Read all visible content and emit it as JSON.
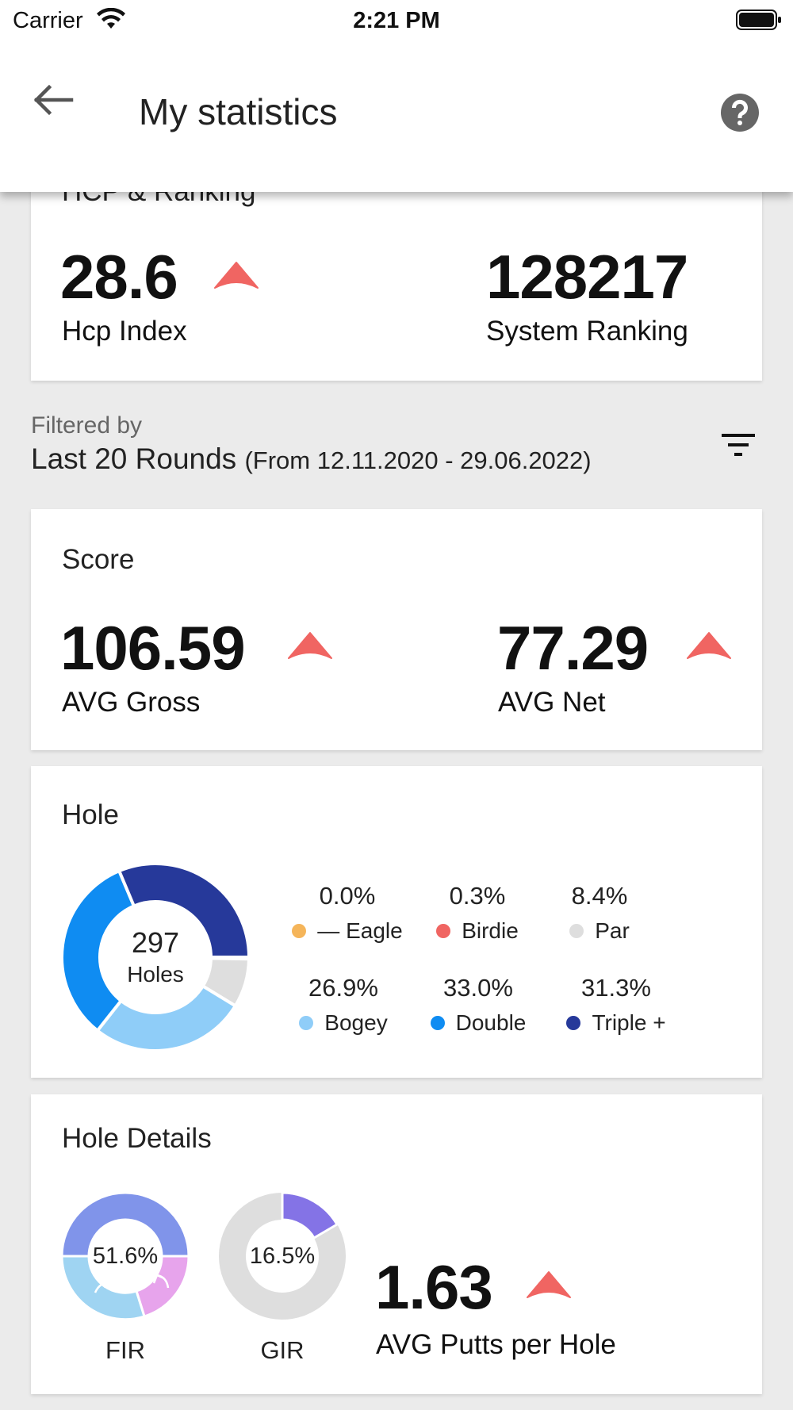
{
  "status_bar": {
    "carrier": "Carrier",
    "time": "2:21 PM",
    "wifi_icon": "wifi-icon",
    "battery_icon": "battery-icon"
  },
  "app_bar": {
    "title": "My statistics",
    "back_icon": "arrow-left-icon",
    "help_icon": "help-circle-icon"
  },
  "hcp_card": {
    "title": "HCP & Ranking",
    "hcp_value": "28.6",
    "hcp_label": "Hcp Index",
    "ranking_value": "128217",
    "ranking_label": "System Ranking"
  },
  "filter": {
    "caption": "Filtered by",
    "value": "Last 20 Rounds",
    "range": "(From 12.11.2020 - 29.06.2022)",
    "filter_icon": "filter-icon"
  },
  "score_card": {
    "title": "Score",
    "gross_value": "106.59",
    "gross_label": "AVG Gross",
    "net_value": "77.29",
    "net_label": "AVG Net"
  },
  "hole_card": {
    "title": "Hole",
    "center_number": "297",
    "center_label": "Holes",
    "legend": [
      {
        "pct": "0.0%",
        "label": "— Eagle",
        "color": "#f5b55a",
        "value": 0.0
      },
      {
        "pct": "0.3%",
        "label": "Birdie",
        "color": "#f06562",
        "value": 0.3
      },
      {
        "pct": "8.4%",
        "label": "Par",
        "color": "#dedede",
        "value": 8.4
      },
      {
        "pct": "26.9%",
        "label": "Bogey",
        "color": "#8fcdf8",
        "value": 26.9
      },
      {
        "pct": "33.0%",
        "label": "Double",
        "color": "#0f8cf2",
        "value": 33.0
      },
      {
        "pct": "31.3%",
        "label": "Triple +",
        "color": "#26399a",
        "value": 31.3
      }
    ]
  },
  "details_card": {
    "title": "Hole Details",
    "fir_pct": "51.6%",
    "fir_label": "FIR",
    "gir_pct": "16.5%",
    "gir_label": "GIR",
    "putts_value": "1.63",
    "putts_label": "AVG Putts per Hole"
  },
  "colors": {
    "trend_up": "#f06562",
    "fir_hit": "#8094ea",
    "fir_left": "#9fd4f2",
    "fir_right": "#e7a4ec",
    "gir_hit": "#8473e6",
    "gir_miss": "#dedede"
  }
}
